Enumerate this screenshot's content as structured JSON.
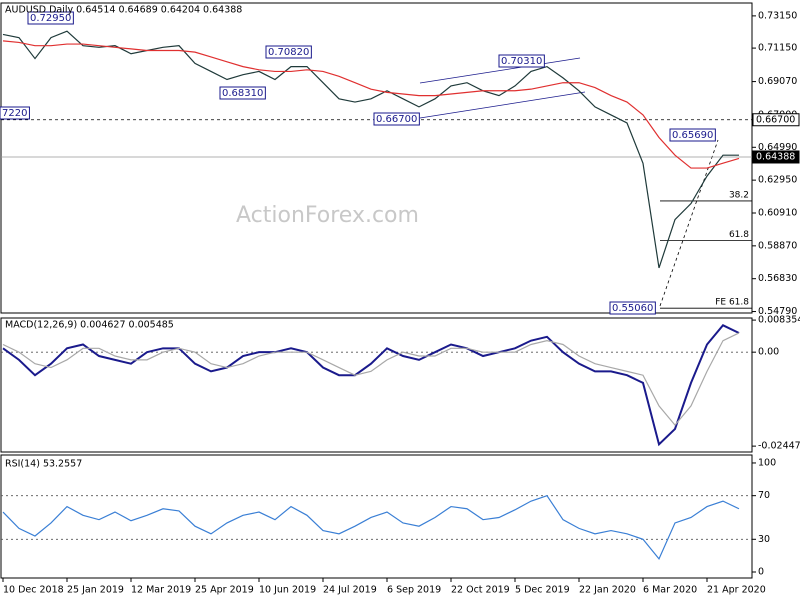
{
  "chart_data": [
    {
      "type": "line",
      "title": "AUDUSD Daily  0.64514 0.64689 0.64204 0.64388",
      "watermark": "ActionForex.com",
      "categories": [
        "10 Dec 2018",
        null,
        null,
        null,
        "25 Jan 2019",
        null,
        null,
        null,
        "12 Mar 2019",
        null,
        null,
        null,
        "25 Apr 2019",
        null,
        null,
        null,
        "10 Jun 2019",
        null,
        null,
        null,
        "24 Jul 2019",
        null,
        null,
        null,
        "6 Sep 2019",
        null,
        null,
        null,
        "22 Oct 2019",
        null,
        null,
        null,
        "5 Dec 2019",
        null,
        null,
        null,
        "22 Jan 2020",
        null,
        null,
        null,
        "6 Mar 2020",
        null,
        null,
        null,
        "21 Apr 2020",
        null,
        null
      ],
      "series": [
        {
          "color": "#1f3a3a",
          "values": [
            0.72,
            0.718,
            0.705,
            0.718,
            0.722,
            0.713,
            0.712,
            0.713,
            0.708,
            0.71,
            0.712,
            0.713,
            0.702,
            0.697,
            0.692,
            0.695,
            0.697,
            0.692,
            0.7,
            0.7,
            0.69,
            0.68,
            0.678,
            0.68,
            0.685,
            0.68,
            0.675,
            0.68,
            0.688,
            0.69,
            0.685,
            0.682,
            0.688,
            0.697,
            0.7,
            0.693,
            0.685,
            0.675,
            0.67,
            0.665,
            0.64,
            0.575,
            0.605,
            0.615,
            0.632,
            0.645,
            0.645
          ]
        },
        {
          "color": "#e03030",
          "values": [
            0.716,
            0.715,
            0.713,
            0.713,
            0.714,
            0.714,
            0.713,
            0.712,
            0.711,
            0.71,
            0.71,
            0.71,
            0.709,
            0.706,
            0.703,
            0.7,
            0.698,
            0.697,
            0.697,
            0.698,
            0.697,
            0.694,
            0.69,
            0.686,
            0.684,
            0.683,
            0.682,
            0.682,
            0.683,
            0.684,
            0.685,
            0.685,
            0.685,
            0.686,
            0.688,
            0.69,
            0.69,
            0.687,
            0.682,
            0.678,
            0.67,
            0.656,
            0.645,
            0.637,
            0.637,
            0.64,
            0.643
          ]
        }
      ],
      "ylim": [
        0.547,
        0.7395
      ],
      "yticks": [
        {
          "value": 0.7315,
          "label": "0.73150"
        },
        {
          "value": 0.7115,
          "label": "0.71150"
        },
        {
          "value": 0.6907,
          "label": "0.69070"
        },
        {
          "value": 0.67,
          "label": "0.67000"
        },
        {
          "value": 0.6499,
          "label": "0.64990"
        },
        {
          "value": 0.6295,
          "label": "0.62950"
        },
        {
          "value": 0.6091,
          "label": "0.60910"
        },
        {
          "value": 0.5887,
          "label": "0.58870"
        },
        {
          "value": 0.5683,
          "label": "0.56830"
        },
        {
          "value": 0.5479,
          "label": "0.54790"
        }
      ],
      "hlines": [
        {
          "value": 0.667,
          "label": "0.66700",
          "style": "dashed"
        },
        {
          "value": 0.64388,
          "label": "0.64388",
          "style": "solid"
        },
        {
          "value": 0.6166,
          "label": "38.2",
          "style": "fib"
        },
        {
          "value": 0.5921,
          "label": "61.8",
          "style": "fib"
        },
        {
          "value": 0.55,
          "label": "FE 61.8",
          "style": "fib"
        }
      ],
      "annotations": [
        "0.72950",
        "0.70820",
        "0.68310",
        "0.66700",
        "0.70310",
        "0.65690",
        "0.55060",
        "7220"
      ]
    },
    {
      "type": "line",
      "title": "MACD(12,26,9) 0.004627 0.005485",
      "series": [
        {
          "color": "#1a1a8c",
          "values": [
            0.001,
            -0.002,
            -0.006,
            -0.003,
            0.001,
            0.002,
            -0.001,
            -0.002,
            -0.003,
            0.0,
            0.001,
            0.001,
            -0.003,
            -0.005,
            -0.004,
            -0.001,
            0.0,
            0.0,
            0.001,
            0.0,
            -0.004,
            -0.006,
            -0.006,
            -0.003,
            0.001,
            -0.001,
            -0.002,
            0.0,
            0.002,
            0.001,
            -0.001,
            0.0,
            0.001,
            0.003,
            0.004,
            0.0,
            -0.003,
            -0.005,
            -0.005,
            -0.006,
            -0.008,
            -0.024,
            -0.02,
            -0.008,
            0.002,
            0.007,
            0.005
          ]
        },
        {
          "color": "#a8a8a8",
          "values": [
            0.002,
            0.0,
            -0.003,
            -0.004,
            -0.002,
            0.001,
            0.001,
            -0.001,
            -0.002,
            -0.002,
            0.0,
            0.001,
            0.0,
            -0.003,
            -0.004,
            -0.003,
            -0.001,
            0.0,
            0.0,
            0.0,
            -0.002,
            -0.004,
            -0.006,
            -0.005,
            -0.002,
            0.0,
            -0.001,
            -0.001,
            0.001,
            0.001,
            0.0,
            0.0,
            0.0,
            0.002,
            0.003,
            0.002,
            -0.001,
            -0.003,
            -0.004,
            -0.005,
            -0.006,
            -0.014,
            -0.019,
            -0.014,
            -0.005,
            0.003,
            0.005
          ]
        }
      ],
      "ylim": [
        -0.026,
        0.0089
      ],
      "yticks": [
        0.008354,
        {
          "value": 0,
          "label": "0.00"
        },
        -0.02447
      ],
      "reference_lines": [
        0
      ]
    },
    {
      "type": "line",
      "title": "RSI(14) 53.2557",
      "series": [
        {
          "color": "#3a7fd5",
          "values": [
            55,
            40,
            33,
            45,
            60,
            52,
            48,
            55,
            47,
            52,
            58,
            56,
            42,
            35,
            45,
            52,
            55,
            48,
            60,
            52,
            38,
            35,
            42,
            50,
            55,
            45,
            42,
            50,
            60,
            58,
            48,
            50,
            57,
            65,
            70,
            48,
            40,
            35,
            38,
            35,
            30,
            12,
            45,
            50,
            60,
            65,
            58
          ]
        }
      ],
      "ylim": [
        -5.5,
        107.3
      ],
      "yticks": [
        100,
        70,
        30,
        0
      ],
      "reference_lines": [
        70,
        30
      ]
    }
  ]
}
